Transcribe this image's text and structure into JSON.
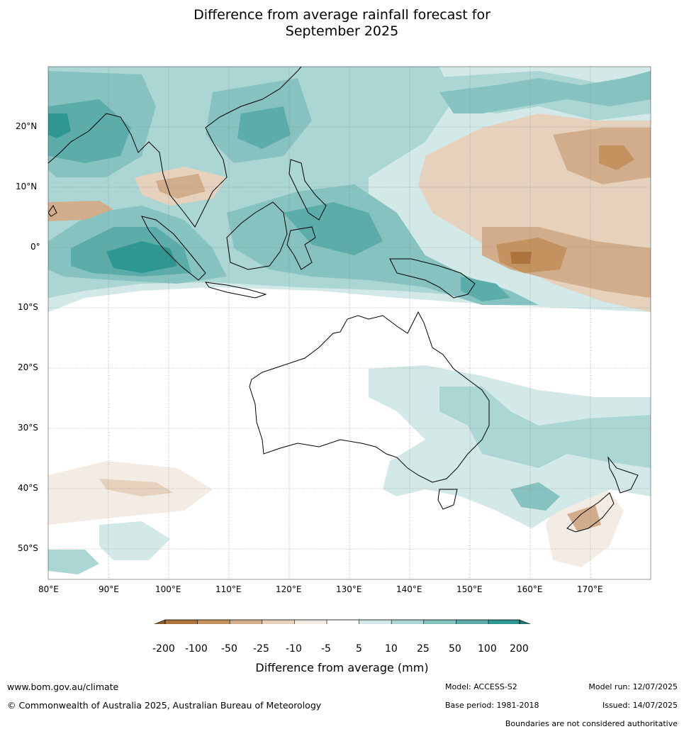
{
  "title_line1": "Difference from average rainfall forecast for",
  "title_line2": "September 2025",
  "map": {
    "lon_labels": [
      "80°E",
      "90°E",
      "100°E",
      "110°E",
      "120°E",
      "130°E",
      "140°E",
      "150°E",
      "160°E",
      "170°E"
    ],
    "lat_labels": [
      "20°N",
      "10°N",
      "0°",
      "10°S",
      "20°S",
      "30°S",
      "40°S",
      "50°S"
    ],
    "colors": {
      "brown_200": "#8f5a25",
      "brown_100": "#ad733d",
      "brown_50": "#c3925f",
      "brown_25": "#d2ad8b",
      "brown_10": "#e5d1bc",
      "brown_5": "#f2ece4",
      "neutral": "#ffffff",
      "teal_5": "#d3e9e7",
      "teal_10": "#abd6d3",
      "teal_25": "#86c2bf",
      "teal_50": "#5cadaa",
      "teal_100": "#2f9792",
      "teal_200": "#23766f"
    }
  },
  "colorbar": {
    "tick_labels": [
      "-200",
      "-100",
      "-50",
      "-25",
      "-10",
      "-5",
      "5",
      "10",
      "25",
      "50",
      "100",
      "200"
    ],
    "colors": [
      "#ad733d",
      "#c3925f",
      "#d2ad8b",
      "#e5d1bc",
      "#f2ece4",
      "#ffffff",
      "#d3e9e7",
      "#abd6d3",
      "#86c2bf",
      "#5cadaa",
      "#2f9792"
    ],
    "under_color": "#8f5a25",
    "over_color": "#23766f",
    "label": "Difference from average (mm)"
  },
  "footer": {
    "website": "www.bom.gov.au/climate",
    "copyright": "© Commonwealth of Australia 2025, Australian Bureau of Meteorology",
    "model": "Model: ACCESS-S2",
    "model_run": "Model run: 12/07/2025",
    "base_period": "Base period: 1981-2018",
    "issued": "Issued: 14/07/2025",
    "disclaimer": "Boundaries are not considered authoritative"
  }
}
